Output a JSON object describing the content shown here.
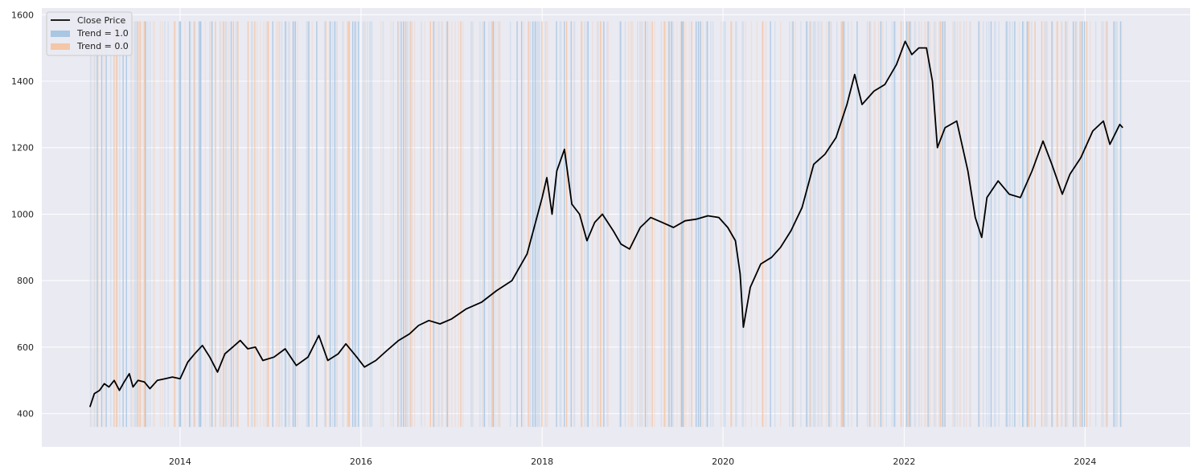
{
  "chart_data": {
    "type": "line",
    "title": "",
    "xlabel": "",
    "ylabel": "",
    "xlim": [
      "2012-06-22",
      "2025-02-28"
    ],
    "ylim": [
      300,
      1620
    ],
    "yticks": [
      400,
      600,
      800,
      1000,
      1200,
      1400,
      1600
    ],
    "xticks": [
      "2014-01-01",
      "2016-01-01",
      "2018-01-01",
      "2020-01-01",
      "2022-01-01",
      "2024-01-01"
    ],
    "xtick_labels": [
      "2014",
      "2016",
      "2018",
      "2020",
      "2022",
      "2024"
    ],
    "grid": true,
    "legend_position": "top-left",
    "legend": [
      {
        "label": "Close Price",
        "kind": "line",
        "color": "#000000"
      },
      {
        "label": "Trend = 1.0",
        "kind": "patch",
        "color": "#a9c6e2"
      },
      {
        "label": "Trend = 0.0",
        "kind": "patch",
        "color": "#f4c7a8"
      }
    ],
    "series": [
      {
        "name": "Close Price",
        "color": "#000000",
        "points": [
          [
            "2013-01-02",
            420
          ],
          [
            "2013-01-20",
            460
          ],
          [
            "2013-02-10",
            470
          ],
          [
            "2013-03-01",
            490
          ],
          [
            "2013-03-20",
            480
          ],
          [
            "2013-04-10",
            500
          ],
          [
            "2013-05-01",
            470
          ],
          [
            "2013-05-20",
            495
          ],
          [
            "2013-06-10",
            520
          ],
          [
            "2013-06-25",
            480
          ],
          [
            "2013-07-15",
            500
          ],
          [
            "2013-08-10",
            495
          ],
          [
            "2013-09-01",
            475
          ],
          [
            "2013-10-01",
            500
          ],
          [
            "2013-11-01",
            505
          ],
          [
            "2013-12-01",
            510
          ],
          [
            "2014-01-01",
            505
          ],
          [
            "2014-02-01",
            555
          ],
          [
            "2014-03-01",
            580
          ],
          [
            "2014-04-01",
            605
          ],
          [
            "2014-05-01",
            570
          ],
          [
            "2014-06-01",
            525
          ],
          [
            "2014-07-01",
            580
          ],
          [
            "2014-08-01",
            600
          ],
          [
            "2014-09-01",
            620
          ],
          [
            "2014-10-01",
            595
          ],
          [
            "2014-11-01",
            600
          ],
          [
            "2014-12-01",
            560
          ],
          [
            "2015-01-15",
            570
          ],
          [
            "2015-03-01",
            595
          ],
          [
            "2015-04-15",
            545
          ],
          [
            "2015-06-01",
            570
          ],
          [
            "2015-07-15",
            635
          ],
          [
            "2015-08-20",
            560
          ],
          [
            "2015-10-01",
            580
          ],
          [
            "2015-11-01",
            610
          ],
          [
            "2015-12-15",
            570
          ],
          [
            "2016-01-15",
            540
          ],
          [
            "2016-03-01",
            560
          ],
          [
            "2016-04-15",
            590
          ],
          [
            "2016-06-01",
            620
          ],
          [
            "2016-07-15",
            640
          ],
          [
            "2016-08-20",
            665
          ],
          [
            "2016-10-01",
            680
          ],
          [
            "2016-11-15",
            670
          ],
          [
            "2017-01-01",
            685
          ],
          [
            "2017-03-01",
            715
          ],
          [
            "2017-05-01",
            735
          ],
          [
            "2017-07-01",
            770
          ],
          [
            "2017-09-01",
            800
          ],
          [
            "2017-11-01",
            880
          ],
          [
            "2018-01-01",
            1050
          ],
          [
            "2018-01-20",
            1110
          ],
          [
            "2018-02-10",
            1000
          ],
          [
            "2018-03-01",
            1130
          ],
          [
            "2018-04-01",
            1195
          ],
          [
            "2018-05-01",
            1030
          ],
          [
            "2018-06-01",
            1000
          ],
          [
            "2018-07-01",
            920
          ],
          [
            "2018-08-01",
            975
          ],
          [
            "2018-09-01",
            1000
          ],
          [
            "2018-10-15",
            950
          ],
          [
            "2018-11-15",
            910
          ],
          [
            "2018-12-20",
            895
          ],
          [
            "2019-02-01",
            960
          ],
          [
            "2019-03-15",
            990
          ],
          [
            "2019-05-01",
            975
          ],
          [
            "2019-06-15",
            960
          ],
          [
            "2019-08-01",
            980
          ],
          [
            "2019-09-15",
            985
          ],
          [
            "2019-11-01",
            995
          ],
          [
            "2019-12-15",
            990
          ],
          [
            "2020-01-20",
            960
          ],
          [
            "2020-02-20",
            920
          ],
          [
            "2020-03-10",
            820
          ],
          [
            "2020-03-23",
            660
          ],
          [
            "2020-04-20",
            780
          ],
          [
            "2020-06-01",
            850
          ],
          [
            "2020-07-15",
            870
          ],
          [
            "2020-08-20",
            900
          ],
          [
            "2020-10-01",
            950
          ],
          [
            "2020-11-15",
            1020
          ],
          [
            "2021-01-01",
            1150
          ],
          [
            "2021-02-15",
            1180
          ],
          [
            "2021-04-01",
            1230
          ],
          [
            "2021-05-15",
            1330
          ],
          [
            "2021-06-15",
            1420
          ],
          [
            "2021-07-15",
            1330
          ],
          [
            "2021-09-01",
            1370
          ],
          [
            "2021-10-15",
            1390
          ],
          [
            "2021-12-01",
            1450
          ],
          [
            "2022-01-05",
            1520
          ],
          [
            "2022-02-01",
            1480
          ],
          [
            "2022-03-01",
            1500
          ],
          [
            "2022-04-01",
            1500
          ],
          [
            "2022-04-25",
            1400
          ],
          [
            "2022-05-15",
            1200
          ],
          [
            "2022-06-15",
            1260
          ],
          [
            "2022-08-01",
            1280
          ],
          [
            "2022-09-15",
            1130
          ],
          [
            "2022-10-15",
            990
          ],
          [
            "2022-11-10",
            930
          ],
          [
            "2022-12-01",
            1050
          ],
          [
            "2023-01-15",
            1100
          ],
          [
            "2023-03-01",
            1060
          ],
          [
            "2023-04-15",
            1050
          ],
          [
            "2023-06-01",
            1130
          ],
          [
            "2023-07-15",
            1220
          ],
          [
            "2023-08-20",
            1150
          ],
          [
            "2023-10-01",
            1060
          ],
          [
            "2023-11-01",
            1120
          ],
          [
            "2023-12-15",
            1170
          ],
          [
            "2024-02-01",
            1250
          ],
          [
            "2024-03-15",
            1280
          ],
          [
            "2024-04-10",
            1210
          ],
          [
            "2024-05-20",
            1270
          ],
          [
            "2024-06-01",
            1260
          ]
        ]
      }
    ]
  }
}
